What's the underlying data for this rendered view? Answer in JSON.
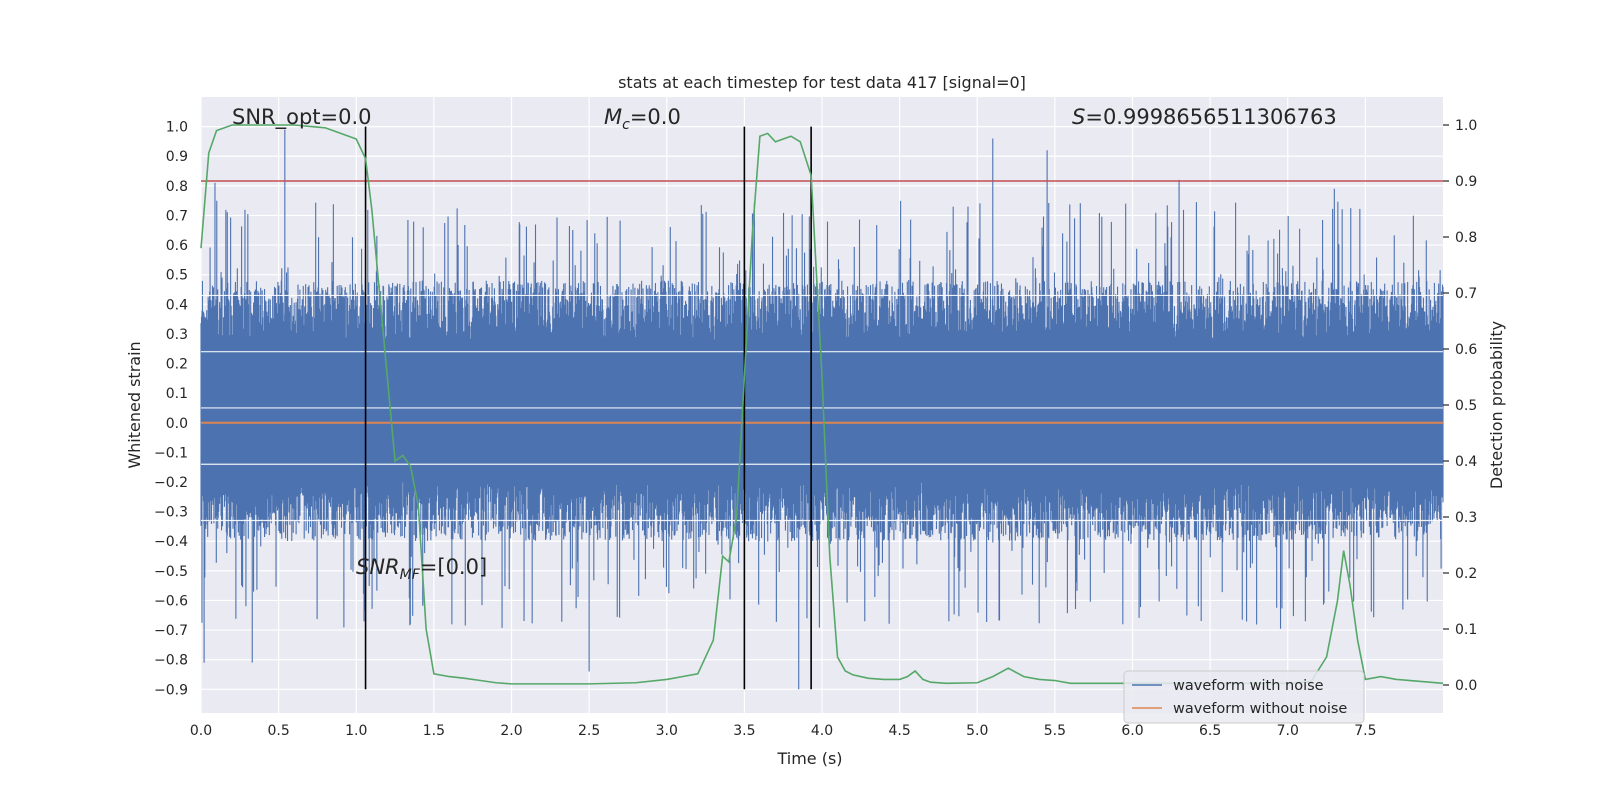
{
  "chart_data": {
    "type": "line",
    "title": "stats at each timestep for test data 417 [signal=0]",
    "xlabel": "Time (s)",
    "ylabel": "Whitened strain",
    "y2label": "Detection probability",
    "xlim": [
      0,
      8
    ],
    "ylim": [
      -0.98,
      1.1
    ],
    "y2lim": [
      -0.05,
      1.05
    ],
    "xticks": [
      0,
      0.5,
      1,
      1.5,
      2,
      2.5,
      3,
      3.5,
      4,
      4.5,
      5,
      5.5,
      6,
      6.5,
      7,
      7.5
    ],
    "xtick_labels": [
      "0.0",
      "0.5",
      "1.0",
      "1.5",
      "2.0",
      "2.5",
      "3.0",
      "3.5",
      "4.0",
      "4.5",
      "5.0",
      "5.5",
      "6.0",
      "6.5",
      "7.0",
      "7.5"
    ],
    "yticks": [
      -0.9,
      -0.8,
      -0.7,
      -0.6,
      -0.5,
      -0.4,
      -0.3,
      -0.2,
      -0.1,
      0,
      0.1,
      0.2,
      0.3,
      0.4,
      0.5,
      0.6,
      0.7,
      0.8,
      0.9,
      1.0
    ],
    "ytick_labels": [
      "−0.9",
      "−0.8",
      "−0.7",
      "−0.6",
      "−0.5",
      "−0.4",
      "−0.3",
      "−0.2",
      "−0.1",
      "0.0",
      "0.1",
      "0.2",
      "0.3",
      "0.4",
      "0.5",
      "0.6",
      "0.7",
      "0.8",
      "0.9",
      "1.0"
    ],
    "y2ticks": [
      0,
      0.1,
      0.2,
      0.3,
      0.4,
      0.5,
      0.6,
      0.7,
      0.8,
      0.9,
      1.0
    ],
    "y2tick_labels": [
      "0.0",
      "0.1",
      "0.2",
      "0.3",
      "0.4",
      "0.5",
      "0.6",
      "0.7",
      "0.8",
      "0.9",
      "1.0"
    ],
    "grid": true,
    "legend_placement": "lower-right",
    "annotations": {
      "snr_opt": "SNR_opt=0.0",
      "mc_symbol": "M",
      "mc_sub": "c",
      "mc_value": "=0.0",
      "s_symbol": "S",
      "s_value": "=0.9998656511306763",
      "snr_mf_symbol": "SNR",
      "snr_mf_sub": "MF",
      "snr_mf_value": "=[0.0]"
    },
    "threshold": {
      "y2": 0.9,
      "color": "#c44e52"
    },
    "vertical_markers": [
      1.06,
      3.5,
      3.93
    ],
    "series": [
      {
        "name": "waveform with noise",
        "color": "#4c72b0",
        "axis": "left",
        "description_of_band": "dense noise filling roughly -0.35 to 0.45 with spikes",
        "peaks": [
          [
            0.09,
            0.81
          ],
          [
            0.54,
            0.99
          ],
          [
            1.05,
            -0.67
          ],
          [
            3.5,
            0.77
          ],
          [
            5.1,
            0.96
          ],
          [
            5.45,
            0.92
          ],
          [
            6.3,
            0.82
          ],
          [
            7.3,
            0.79
          ],
          [
            2.5,
            -0.84
          ],
          [
            3.85,
            -0.9
          ],
          [
            0.02,
            -0.81
          ],
          [
            0.33,
            -0.81
          ]
        ]
      },
      {
        "name": "waveform without noise",
        "color": "#dd8452",
        "axis": "left",
        "value": 0.0
      },
      {
        "name": "",
        "color": "#55a868",
        "axis": "right",
        "x": [
          0,
          0.05,
          0.1,
          0.2,
          0.4,
          0.6,
          0.8,
          0.9,
          1.0,
          1.06,
          1.1,
          1.15,
          1.2,
          1.25,
          1.3,
          1.35,
          1.4,
          1.45,
          1.5,
          1.6,
          1.7,
          1.8,
          1.9,
          2.0,
          2.2,
          2.5,
          2.8,
          3.0,
          3.1,
          3.2,
          3.3,
          3.36,
          3.4,
          3.45,
          3.5,
          3.55,
          3.6,
          3.65,
          3.7,
          3.8,
          3.86,
          3.93,
          4.0,
          4.05,
          4.1,
          4.15,
          4.2,
          4.3,
          4.4,
          4.5,
          4.55,
          4.6,
          4.65,
          4.7,
          4.8,
          5.0,
          5.1,
          5.2,
          5.3,
          5.4,
          5.5,
          5.6,
          6.0,
          6.5,
          7.0,
          7.15,
          7.25,
          7.32,
          7.36,
          7.4,
          7.45,
          7.5,
          7.6,
          7.7,
          8.0
        ],
        "values": [
          0.78,
          0.95,
          0.99,
          1.0,
          1.0,
          1.0,
          0.995,
          0.985,
          0.975,
          0.94,
          0.85,
          0.7,
          0.55,
          0.4,
          0.41,
          0.39,
          0.32,
          0.1,
          0.02,
          0.015,
          0.012,
          0.008,
          0.004,
          0.002,
          0.002,
          0.002,
          0.004,
          0.01,
          0.015,
          0.02,
          0.08,
          0.23,
          0.22,
          0.3,
          0.55,
          0.8,
          0.98,
          0.985,
          0.97,
          0.98,
          0.97,
          0.91,
          0.55,
          0.23,
          0.05,
          0.025,
          0.018,
          0.012,
          0.01,
          0.01,
          0.015,
          0.025,
          0.01,
          0.005,
          0.003,
          0.004,
          0.015,
          0.03,
          0.015,
          0.01,
          0.008,
          0.003,
          0.003,
          0.003,
          0.003,
          0.006,
          0.05,
          0.15,
          0.24,
          0.18,
          0.08,
          0.01,
          0.015,
          0.01,
          0.003
        ]
      }
    ]
  }
}
